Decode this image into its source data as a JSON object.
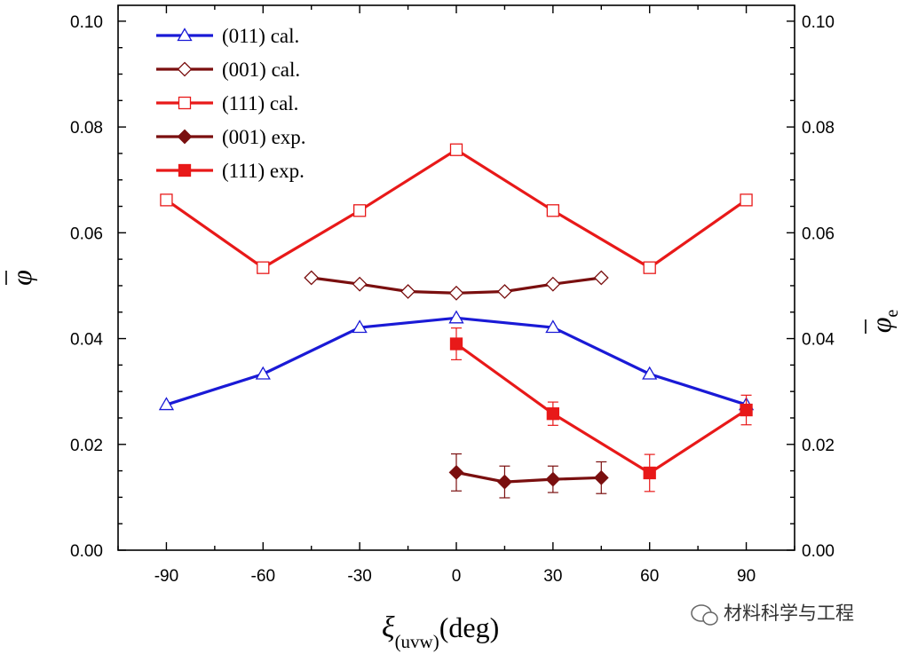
{
  "chart_data": {
    "type": "line",
    "xlabel": {
      "symbol": "ξ",
      "subscript": "(uvw)",
      "suffix": "(deg)"
    },
    "ylabel_left": "φ",
    "ylabel_right": {
      "symbol": "φ",
      "subscript": "e"
    },
    "xlim": [
      -105,
      105
    ],
    "ylim": [
      0,
      0.103
    ],
    "x_ticks": [
      -90,
      -60,
      -30,
      0,
      30,
      60,
      90
    ],
    "y_ticks_left": [
      "0.00",
      "0.02",
      "0.04",
      "0.06",
      "0.08",
      "0.10"
    ],
    "y_ticks_right": [
      "0.00",
      "0.02",
      "0.04",
      "0.06",
      "0.08",
      "0.10"
    ],
    "legend_position": "top-left",
    "grid": false,
    "series": [
      {
        "name": "(011) cal.",
        "color": "#1a1ad6",
        "marker": "open-triangle",
        "x": [
          -90,
          -60,
          -30,
          0,
          30,
          60,
          90
        ],
        "y": [
          0.0275,
          0.0333,
          0.0421,
          0.0439,
          0.0421,
          0.0333,
          0.0275
        ]
      },
      {
        "name": "(001) cal.",
        "color": "#7a0f0f",
        "marker": "open-diamond",
        "x": [
          -45,
          -30,
          -15,
          0,
          15,
          30,
          45
        ],
        "y": [
          0.0515,
          0.0503,
          0.0489,
          0.0486,
          0.0489,
          0.0503,
          0.0515
        ]
      },
      {
        "name": "(111) cal.",
        "color": "#e81919",
        "marker": "open-square",
        "x": [
          -90,
          -60,
          -30,
          0,
          30,
          60,
          90
        ],
        "y": [
          0.0662,
          0.0534,
          0.0642,
          0.0757,
          0.0642,
          0.0534,
          0.0662
        ]
      },
      {
        "name": "(001) exp.",
        "color": "#7a0f0f",
        "marker": "filled-diamond",
        "x": [
          0,
          15,
          30,
          45
        ],
        "y": [
          0.0147,
          0.0129,
          0.0134,
          0.0137
        ],
        "err": [
          0.0035,
          0.003,
          0.0025,
          0.003
        ]
      },
      {
        "name": "(111) exp.",
        "color": "#e81919",
        "marker": "filled-square",
        "x": [
          0,
          30,
          60,
          90
        ],
        "y": [
          0.039,
          0.0258,
          0.0146,
          0.0265
        ],
        "err": [
          0.003,
          0.0022,
          0.0035,
          0.0028
        ]
      }
    ]
  },
  "watermark": {
    "text": "材料科学与工程",
    "icon": "wechat-icon"
  }
}
